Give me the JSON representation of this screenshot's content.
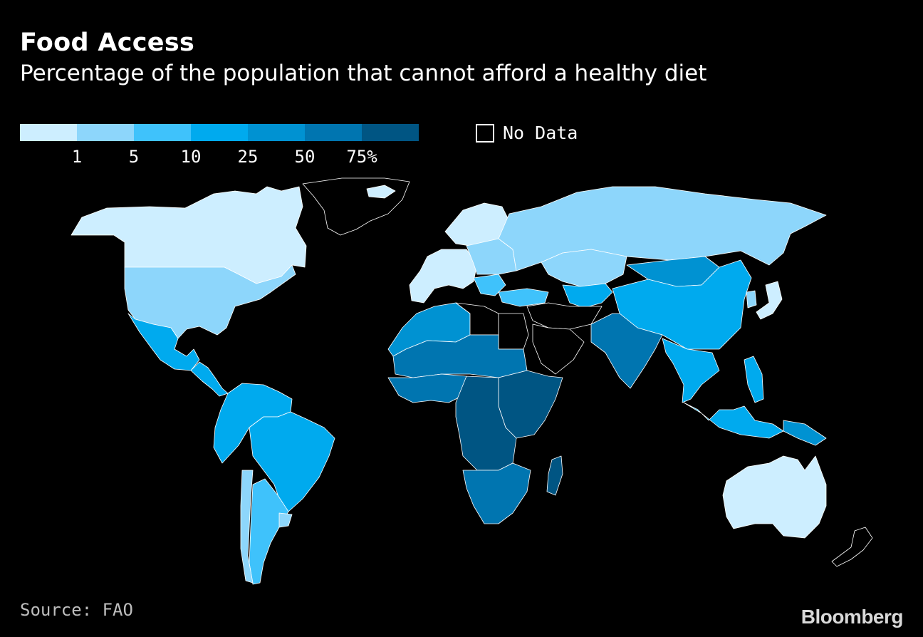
{
  "header": {
    "title": "Food Access",
    "subtitle": "Percentage of the population that cannot afford a healthy diet"
  },
  "legend": {
    "colors": [
      "#cdeeff",
      "#8dd6fb",
      "#3fc2fb",
      "#00aaee",
      "#0092d2",
      "#0075b0",
      "#005583"
    ],
    "ticks": [
      "1",
      "5",
      "10",
      "25",
      "50",
      "75%"
    ],
    "no_data_label": "No Data",
    "no_data_color": "#000000"
  },
  "map": {
    "region_classes": {
      "canada": 0,
      "usa": 1,
      "mexico": 3,
      "central-america": 3,
      "greenland": "no-data",
      "south-america-north": 3,
      "brazil": 3,
      "argentina": 2,
      "chile": 1,
      "uruguay": 1,
      "iceland": 0,
      "scandinavia": 0,
      "western-europe": 0,
      "eastern-europe": 1,
      "balkans": 2,
      "turkey": 2,
      "russia": 1,
      "kazakhstan": 1,
      "mongolia": 4,
      "china": 3,
      "japan": 0,
      "korea": 1,
      "central-asia": 3,
      "middle-east": "no-data",
      "arabian-peninsula": "no-data",
      "south-asia": 5,
      "southeast-asia": 3,
      "indonesia": 3,
      "philippines": 3,
      "papua-new-guinea": 4,
      "north-africa": 4,
      "egypt": "no-data",
      "libya": "no-data",
      "sahel": 5,
      "west-africa": 5,
      "central-africa": 6,
      "east-africa": 6,
      "southern-africa": 5,
      "madagascar": 6,
      "australia": 0,
      "new-zealand": "no-data"
    }
  },
  "footer": {
    "source": "Source: FAO",
    "brand": "Bloomberg"
  }
}
